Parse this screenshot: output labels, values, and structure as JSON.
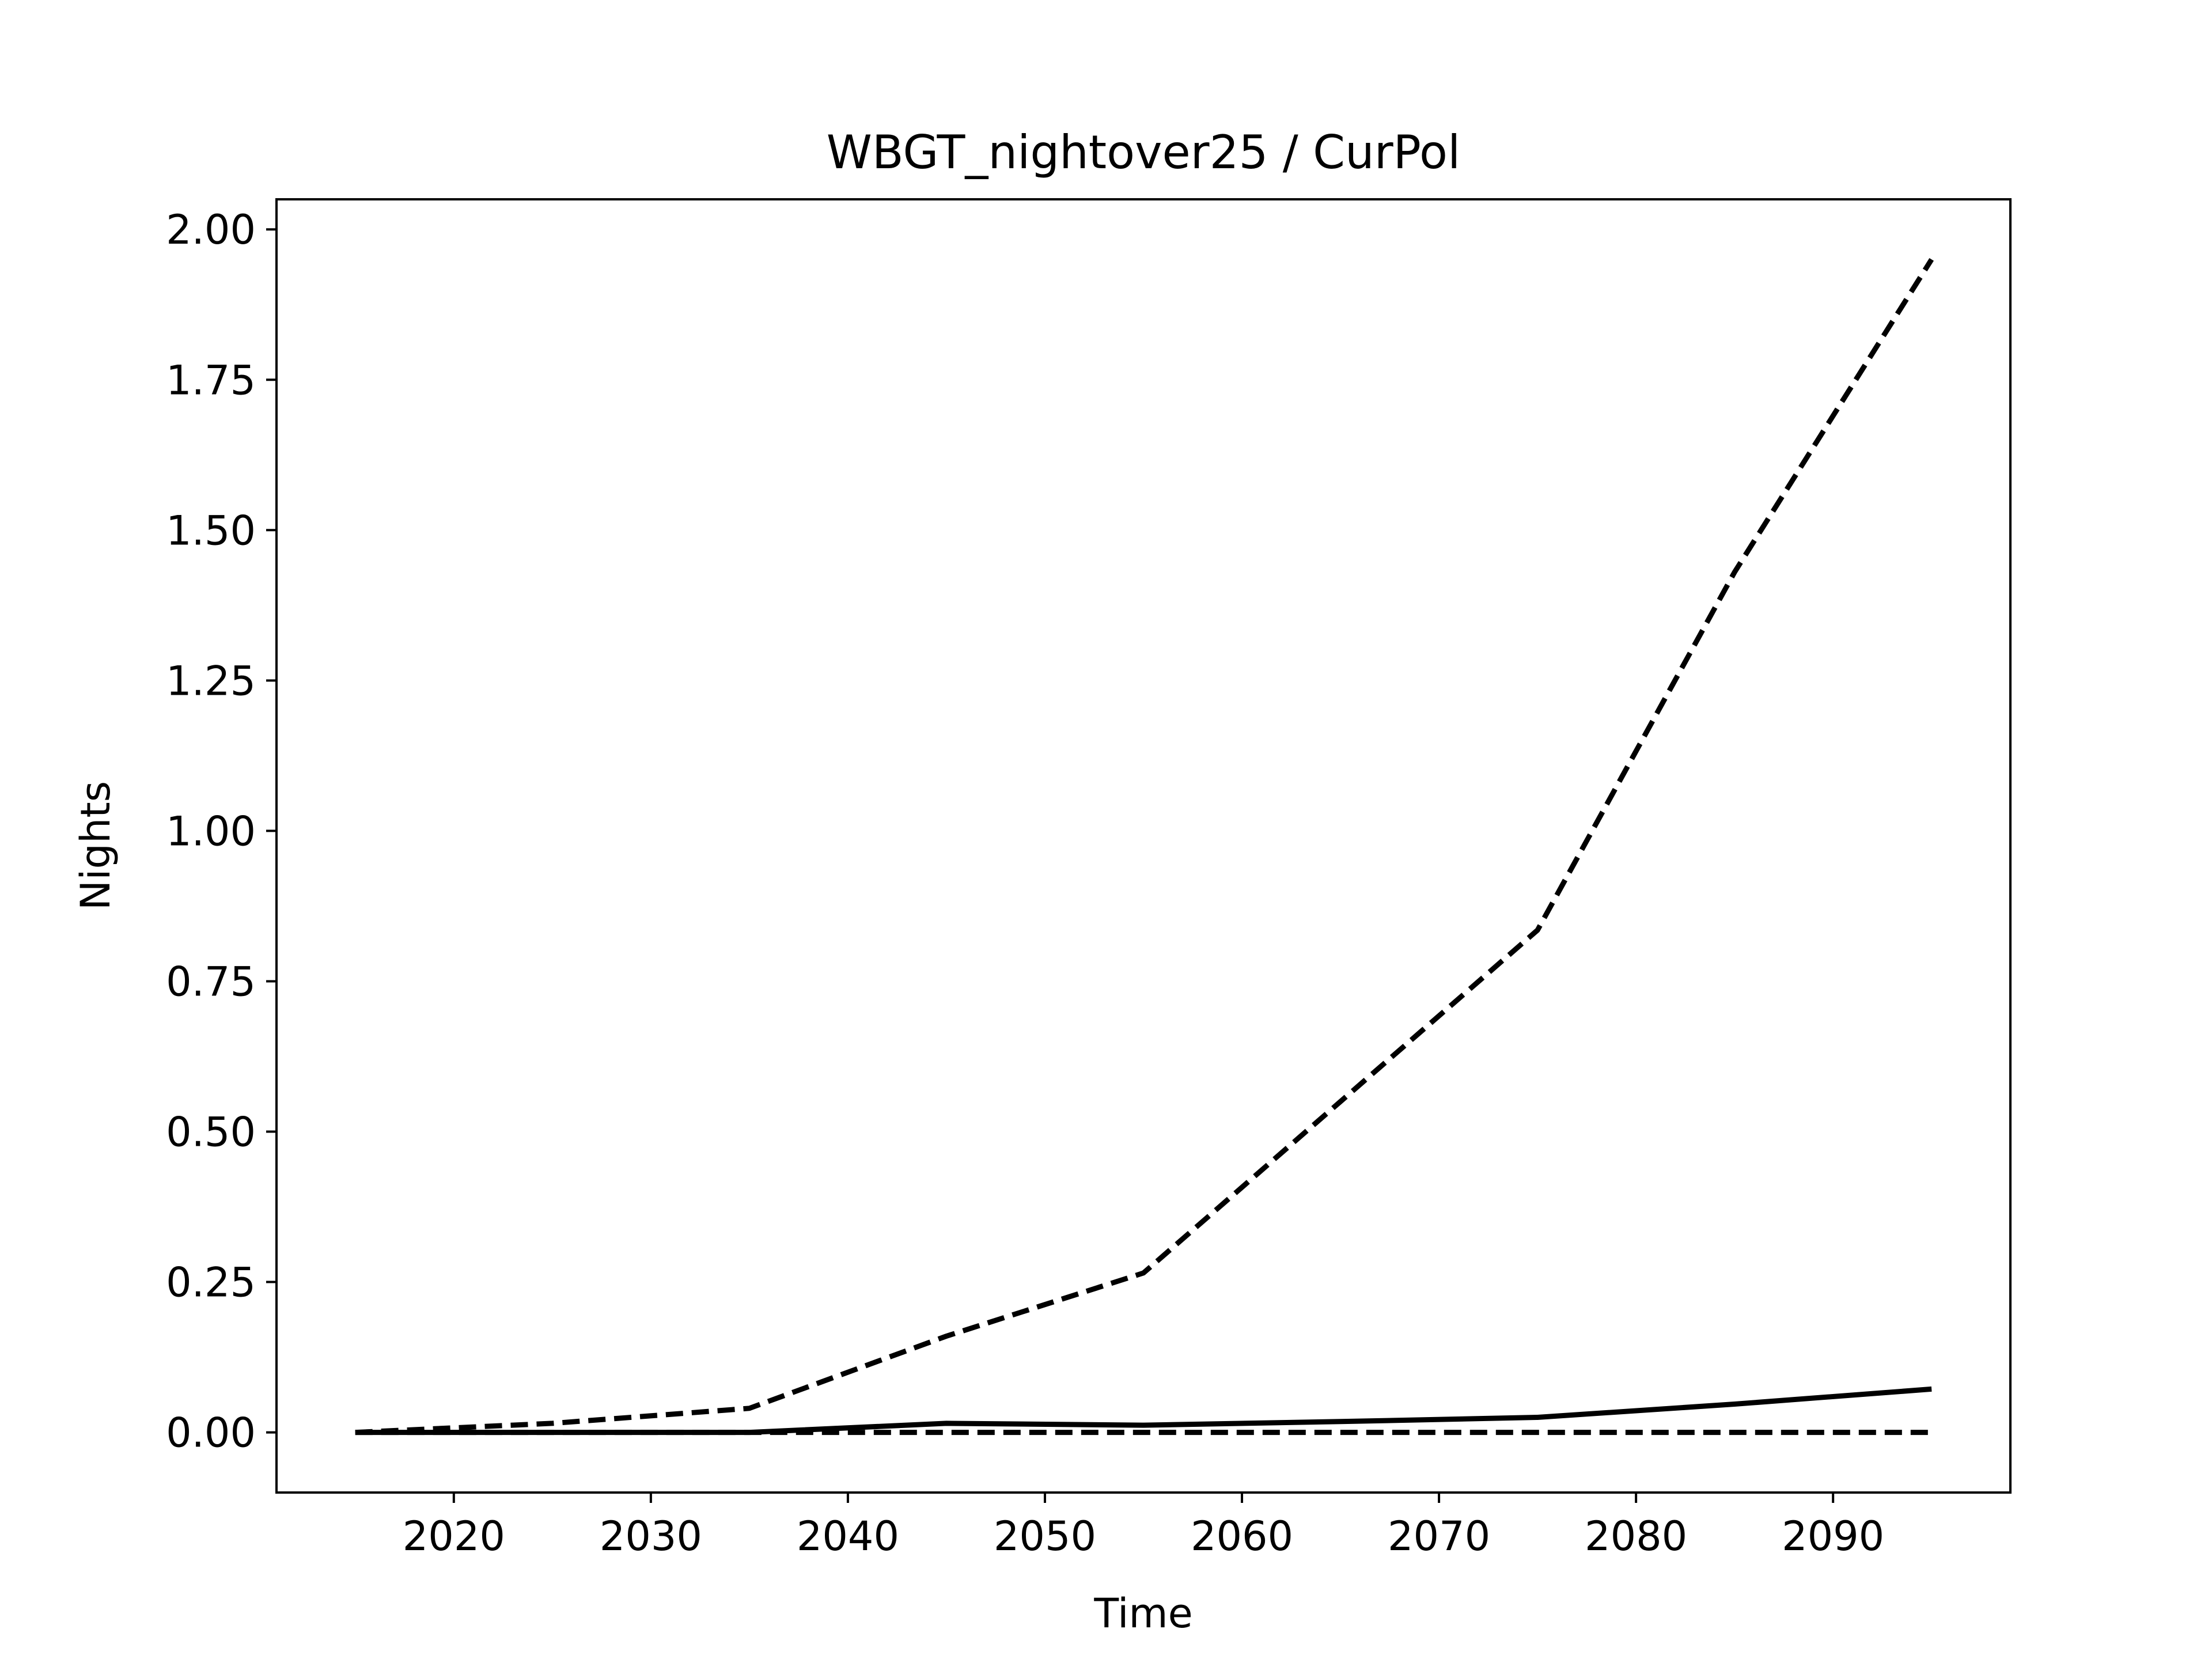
{
  "chart_data": {
    "type": "line",
    "title": "WBGT_nightover25 / CurPol",
    "xlabel": "Time",
    "ylabel": "Nights",
    "xlim": [
      2011,
      2099
    ],
    "ylim": [
      -0.1,
      2.05
    ],
    "xticks": [
      2020,
      2030,
      2040,
      2050,
      2060,
      2070,
      2080,
      2090
    ],
    "xtick_labels": [
      "2020",
      "2030",
      "2040",
      "2050",
      "2060",
      "2070",
      "2080",
      "2090"
    ],
    "yticks": [
      0.0,
      0.25,
      0.5,
      0.75,
      1.0,
      1.25,
      1.5,
      1.75,
      2.0
    ],
    "ytick_labels": [
      "0.00",
      "0.25",
      "0.50",
      "0.75",
      "1.00",
      "1.25",
      "1.50",
      "1.75",
      "2.00"
    ],
    "grid": false,
    "legend": "none",
    "series": [
      {
        "style": "dashed",
        "color": "#000000",
        "x": [
          2015,
          2025,
          2035,
          2045,
          2055,
          2065,
          2075,
          2085,
          2095
        ],
        "y": [
          0.0,
          0.015,
          0.04,
          0.16,
          0.265,
          0.55,
          0.835,
          1.43,
          1.95
        ]
      },
      {
        "style": "solid",
        "color": "#000000",
        "x": [
          2015,
          2025,
          2035,
          2045,
          2055,
          2065,
          2075,
          2085,
          2095
        ],
        "y": [
          0.0,
          0.0,
          0.0,
          0.015,
          0.012,
          0.018,
          0.025,
          0.047,
          0.072
        ]
      },
      {
        "style": "dashed",
        "color": "#000000",
        "x": [
          2015,
          2025,
          2035,
          2045,
          2055,
          2065,
          2075,
          2085,
          2095
        ],
        "y": [
          0.0,
          0.0,
          0.0,
          0.0,
          0.0,
          0.0,
          0.0,
          0.0,
          0.0
        ]
      }
    ]
  }
}
